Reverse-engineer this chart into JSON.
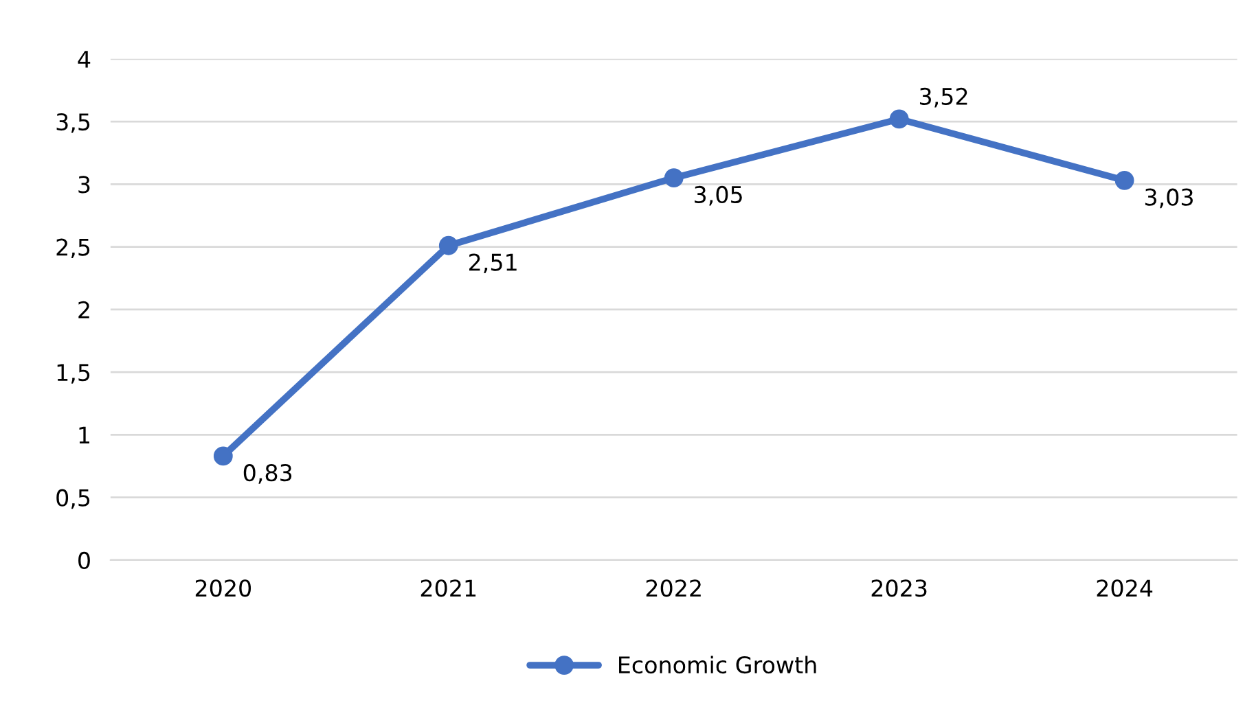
{
  "chart_data": {
    "type": "line",
    "categories": [
      "2020",
      "2021",
      "2022",
      "2023",
      "2024"
    ],
    "series": [
      {
        "name": "Economic Growth",
        "color": "#4472c4",
        "values": [
          0.83,
          2.51,
          3.05,
          3.52,
          3.03
        ],
        "value_labels": [
          "0,83",
          "2,51",
          "3,05",
          "3,52",
          "3,03"
        ]
      }
    ],
    "ylim": [
      0,
      4
    ],
    "yticks": [
      0,
      {
        "value": 0.5,
        "label": "0,5"
      },
      1,
      {
        "value": 1.5,
        "label": "1,5"
      },
      2,
      {
        "value": 2.5,
        "label": "2,5"
      },
      3,
      {
        "value": 3.5,
        "label": "3,5"
      },
      4
    ],
    "grid": "y",
    "legend": "bottom",
    "marker": "circle",
    "line_style": "solid"
  }
}
